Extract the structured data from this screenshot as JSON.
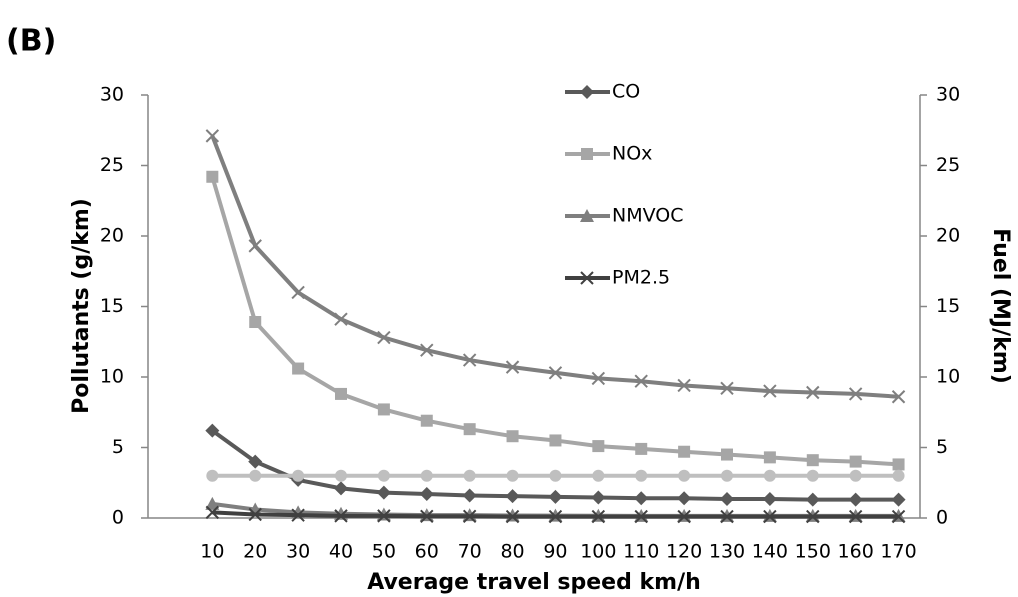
{
  "chart_data": {
    "type": "line",
    "panel_label": "(B)",
    "xlabel": "Average travel speed km/h",
    "ylabel": "Pollutants  (g/km)",
    "y2label": "Fuel (MJ/km)",
    "categories": [
      null,
      10,
      20,
      30,
      40,
      50,
      60,
      70,
      80,
      90,
      100,
      110,
      120,
      130,
      140,
      150,
      160,
      170
    ],
    "ylim": [
      0,
      30
    ],
    "yticks": [
      0,
      5,
      10,
      15,
      20,
      25,
      30
    ],
    "y2lim": [
      0,
      30
    ],
    "y2ticks": [
      0,
      5,
      10,
      15,
      20,
      25,
      30
    ],
    "grid": false,
    "legend": "top",
    "series": [
      {
        "name": "CO",
        "color": "#595959",
        "marker": "diamond",
        "values": [
          null,
          6.2,
          4.0,
          2.7,
          2.1,
          1.8,
          1.7,
          1.6,
          1.55,
          1.5,
          1.45,
          1.4,
          1.4,
          1.35,
          1.35,
          1.3,
          1.3,
          1.3
        ]
      },
      {
        "name": "NOx",
        "color": "#a6a6a6",
        "marker": "square",
        "values": [
          null,
          24.2,
          13.9,
          10.6,
          8.8,
          7.7,
          6.9,
          6.3,
          5.8,
          5.5,
          5.1,
          4.9,
          4.7,
          4.5,
          4.3,
          4.1,
          4.0,
          3.8
        ]
      },
      {
        "name": "NMVOC",
        "color": "#7f7f7f",
        "marker": "triangle",
        "values": [
          null,
          1.0,
          0.6,
          0.4,
          0.3,
          0.25,
          0.2,
          0.2,
          0.18,
          0.17,
          0.16,
          0.15,
          0.15,
          0.15,
          0.15,
          0.15,
          0.15,
          0.15
        ]
      },
      {
        "name": "PM2.5",
        "color": "#404040",
        "marker": "x",
        "values": [
          null,
          0.4,
          0.25,
          0.2,
          0.15,
          0.15,
          0.12,
          0.12,
          0.1,
          0.1,
          0.1,
          0.1,
          0.1,
          0.1,
          0.1,
          0.1,
          0.1,
          0.1
        ]
      },
      {
        "color": "#7f7f7f",
        "marker": "x",
        "axis": "y2",
        "values": [
          null,
          27.1,
          19.3,
          16.0,
          14.1,
          12.8,
          11.9,
          11.2,
          10.7,
          10.3,
          9.9,
          9.7,
          9.4,
          9.2,
          9.0,
          8.9,
          8.8,
          8.6
        ]
      },
      {
        "color": "#bfbfbf",
        "marker": "circle",
        "axis": "y2",
        "values": [
          null,
          3,
          3,
          3,
          3,
          3,
          3,
          3,
          3,
          3,
          3,
          3,
          3,
          3,
          3,
          3,
          3,
          3
        ]
      }
    ]
  }
}
